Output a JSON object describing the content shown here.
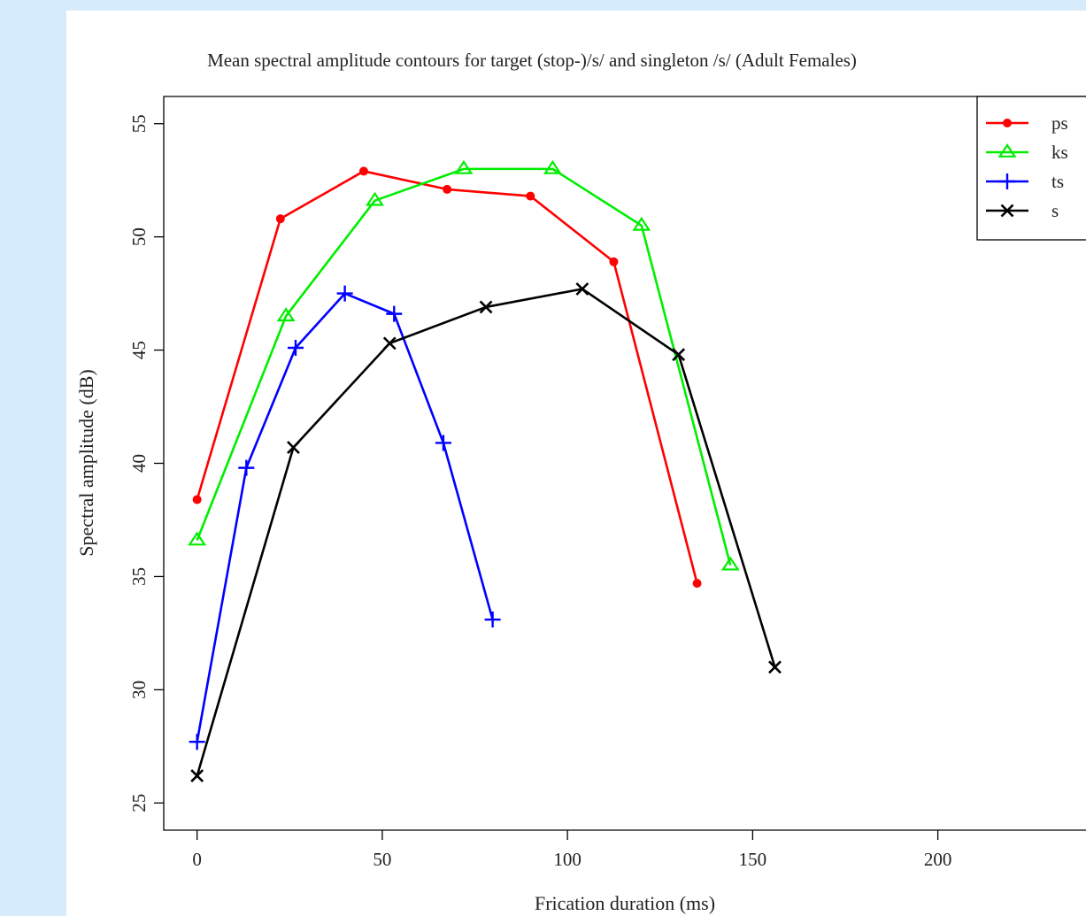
{
  "chart_data": {
    "type": "line",
    "title": "Mean spectral amplitude contours for target (stop-)/s/ and singleton /s/ (Adult Females)",
    "xlabel": "Frication duration (ms)",
    "ylabel": "Spectral amplitude (dB)",
    "xlim": [
      -9,
      240
    ],
    "ylim": [
      23.8,
      56.2
    ],
    "x_ticks": [
      0,
      50,
      100,
      150,
      200
    ],
    "y_ticks": [
      25,
      30,
      35,
      40,
      45,
      50,
      55
    ],
    "grid": false,
    "legend_position": "top-right",
    "series": [
      {
        "name": "ps",
        "color": "#ff0000",
        "marker": "circle",
        "x": [
          0,
          22.5,
          45,
          67.5,
          90,
          112.5,
          135
        ],
        "y": [
          38.4,
          50.8,
          52.9,
          52.1,
          51.8,
          48.9,
          34.7
        ]
      },
      {
        "name": "ks",
        "color": "#00ee00",
        "marker": "triangle",
        "x": [
          0,
          24,
          48,
          72,
          96,
          120,
          144
        ],
        "y": [
          36.6,
          46.5,
          51.6,
          53.0,
          53.0,
          50.5,
          35.5
        ]
      },
      {
        "name": "ts",
        "color": "#0000ff",
        "marker": "plus",
        "x": [
          0,
          13.3,
          26.6,
          39.9,
          53.2,
          66.5,
          79.8
        ],
        "y": [
          27.7,
          39.8,
          45.1,
          47.5,
          46.6,
          40.9,
          33.1
        ]
      },
      {
        "name": "s",
        "color": "#000000",
        "marker": "cross",
        "x": [
          0,
          26,
          52,
          78,
          104,
          130,
          156
        ],
        "y": [
          26.2,
          40.7,
          45.3,
          46.9,
          47.7,
          44.8,
          31.0
        ]
      }
    ]
  }
}
